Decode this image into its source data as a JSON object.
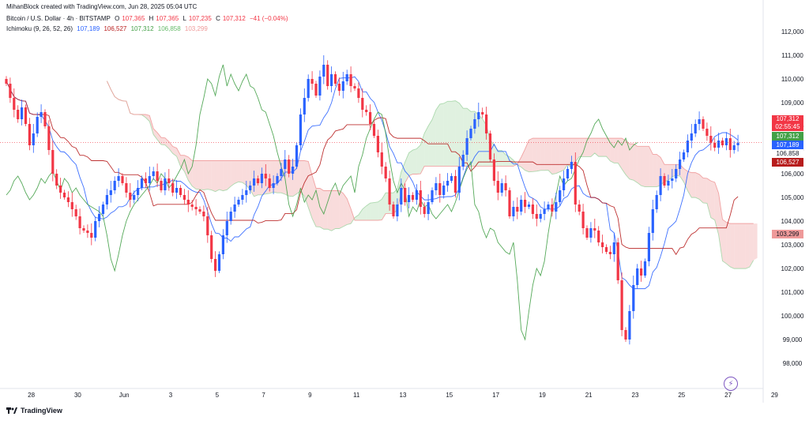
{
  "header": {
    "created_by": "MihanBlock created with TradingView.com, Jun 28, 2025 05:04 UTC",
    "symbol": "Bitcoin / U.S. Dollar · 4h · BITSTAMP",
    "ohlc": {
      "o_label": "O",
      "o": "107,365",
      "h_label": "H",
      "h": "107,365",
      "l_label": "L",
      "l": "107,235",
      "c_label": "C",
      "c": "107,312",
      "change": "−41 (−0.04%)"
    },
    "indicator": "Ichimoku (9, 26, 52, 26)",
    "ind_values": [
      "107,189",
      "106,527",
      "107,312",
      "106,858",
      "103,299"
    ]
  },
  "price_labels": {
    "last": "107,312",
    "countdown": "02:55:45",
    "lagging": "107,312",
    "conversion": "107,189",
    "span_a": "106,858",
    "base": "106,527",
    "span_b": "103,299"
  },
  "footer": {
    "brand": "TradingView"
  },
  "colors": {
    "up": "#2962ff",
    "down": "#f23645",
    "conversion": "#2962ff",
    "base": "#b71c1c",
    "lagging": "#43a047",
    "cloud_bull": "#a5d6a7",
    "cloud_bear": "#ef9a9a"
  },
  "chart_data": {
    "type": "candlestick",
    "title": "Bitcoin / U.S. Dollar · 4h · BITSTAMP",
    "ylim": [
      97500,
      112500
    ],
    "y_ticks": [
      98000,
      99000,
      100000,
      101000,
      102000,
      103000,
      104000,
      105000,
      106000,
      107000,
      108000,
      109000,
      110000,
      111000,
      112000
    ],
    "y_tick_labels": [
      "98,000",
      "99,000",
      "100,000",
      "101,000",
      "102,000",
      "103,000",
      "104,000",
      "105,000",
      "106,000",
      "107,000",
      "108,000",
      "109,000",
      "110,000",
      "111,000",
      "112,000"
    ],
    "x_ticks": [
      {
        "bar": 4,
        "label": "28"
      },
      {
        "bar": 16,
        "label": "30"
      },
      {
        "bar": 28,
        "label": "Jun"
      },
      {
        "bar": 40,
        "label": "3"
      },
      {
        "bar": 52,
        "label": "5"
      },
      {
        "bar": 64,
        "label": "7"
      },
      {
        "bar": 76,
        "label": "9"
      },
      {
        "bar": 88,
        "label": "11"
      },
      {
        "bar": 100,
        "label": "13"
      },
      {
        "bar": 112,
        "label": "15"
      },
      {
        "bar": 124,
        "label": "17"
      },
      {
        "bar": 136,
        "label": "19"
      },
      {
        "bar": 148,
        "label": "21"
      },
      {
        "bar": 160,
        "label": "23"
      },
      {
        "bar": 172,
        "label": "25"
      },
      {
        "bar": 184,
        "label": "27"
      },
      {
        "bar": 196,
        "label": "29"
      }
    ],
    "closes": [
      109800,
      109200,
      108700,
      108300,
      108800,
      108100,
      107200,
      107700,
      108400,
      108600,
      108000,
      107000,
      106000,
      105500,
      105200,
      105000,
      104800,
      104500,
      104200,
      103700,
      103600,
      103500,
      103300,
      104000,
      104300,
      104700,
      105100,
      105300,
      105700,
      105900,
      105600,
      105200,
      104900,
      105100,
      105400,
      105800,
      105600,
      105900,
      106100,
      105700,
      105300,
      105800,
      105600,
      105200,
      105400,
      105100,
      104900,
      104700,
      104600,
      104500,
      104400,
      104200,
      103400,
      102400,
      101900,
      102600,
      103400,
      104000,
      104400,
      104700,
      104900,
      105100,
      105300,
      105500,
      105800,
      105600,
      106000,
      105800,
      105400,
      105600,
      105900,
      106200,
      106600,
      106000,
      106300,
      107200,
      108500,
      109200,
      110000,
      109800,
      109300,
      110100,
      110600,
      109700,
      110200,
      109800,
      109500,
      109900,
      110200,
      109700,
      109600,
      109200,
      108700,
      108600,
      108100,
      107600,
      106900,
      106300,
      105800,
      104700,
      104200,
      104700,
      105400,
      104800,
      105100,
      104900,
      105300,
      104600,
      104300,
      104800,
      105300,
      105600,
      105100,
      105500,
      105700,
      105900,
      105200,
      106300,
      106800,
      107500,
      107900,
      108300,
      108600,
      108500,
      107700,
      106600,
      105700,
      105200,
      105600,
      105300,
      104200,
      104600,
      104400,
      104900,
      104600,
      104700,
      104300,
      104100,
      104300,
      104500,
      104700,
      104400,
      104800,
      105300,
      105800,
      106200,
      106500,
      104700,
      104400,
      103700,
      103300,
      103700,
      103600,
      103100,
      102900,
      102700,
      102600,
      103100,
      101500,
      99400,
      99000,
      100200,
      101300,
      102000,
      101700,
      102300,
      103500,
      104500,
      105100,
      105900,
      105500,
      105700,
      105800,
      106200,
      106600,
      106900,
      107400,
      107700,
      108100,
      108300,
      107900,
      107600,
      107300,
      107100,
      107400,
      107200,
      107500,
      107000,
      107200,
      107312
    ],
    "annotations": [
      "107,312 last",
      "02:55:45 countdown"
    ]
  }
}
